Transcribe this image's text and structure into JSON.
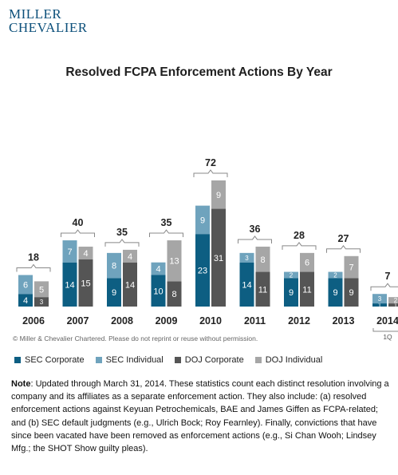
{
  "logo": {
    "line1": "MILLER",
    "line2": "CHEVALIER"
  },
  "copyright": "© Miller & Chevalier Chartered. Please do not reprint or reuse without permission.",
  "note": {
    "label": "Note",
    "text": ": Updated through March 31, 2014. These statistics count each distinct resolution involving a company and its affiliates as a separate enforcement action. They also include: (a) resolved enforcement actions against Keyuan Petrochemicals, BAE and James Giffen as FCPA-related; and (b) SEC default judgments (e.g., Ulrich Bock; Roy Fearnley). Finally, convictions that have since been vacated have been removed as enforcement actions (e.g., Si Chan Wooh; Lindsey Mfg.; the SHOT Show guilty pleas)."
  },
  "colors": {
    "sec_corporate": "#0d5e82",
    "sec_individual": "#6fa3bd",
    "doj_corporate": "#555555",
    "doj_individual": "#a6a6a6"
  },
  "chart_data": {
    "type": "bar",
    "title": "Resolved FCPA Enforcement Actions By Year",
    "categories": [
      "2006",
      "2007",
      "2008",
      "2009",
      "2010",
      "2011",
      "2012",
      "2013",
      "2014"
    ],
    "category_sublabels": [
      "",
      "",
      "",
      "",
      "",
      "",
      "",
      "",
      "1Q"
    ],
    "totals": [
      18,
      40,
      35,
      35,
      72,
      36,
      28,
      27,
      7
    ],
    "series": [
      {
        "name": "SEC Corporate",
        "values": [
          4,
          14,
          9,
          10,
          23,
          14,
          9,
          9,
          1
        ],
        "stack": "SEC",
        "color": "#0d5e82"
      },
      {
        "name": "SEC Individual",
        "values": [
          6,
          7,
          8,
          4,
          9,
          3,
          2,
          2,
          3
        ],
        "stack": "SEC",
        "color": "#6fa3bd"
      },
      {
        "name": "DOJ Corporate",
        "values": [
          3,
          15,
          14,
          8,
          31,
          11,
          11,
          9,
          1
        ],
        "stack": "DOJ",
        "color": "#555555"
      },
      {
        "name": "DOJ Individual",
        "values": [
          5,
          4,
          4,
          13,
          9,
          8,
          6,
          7,
          2
        ],
        "stack": "DOJ",
        "color": "#a6a6a6"
      }
    ],
    "legend_position": "bottom",
    "grid": false
  }
}
